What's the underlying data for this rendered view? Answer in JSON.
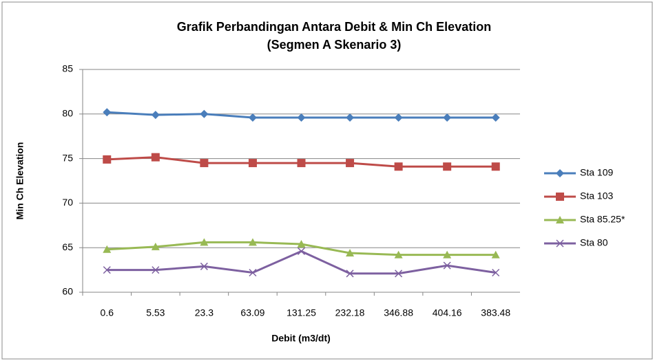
{
  "chart_data": {
    "type": "line",
    "title": "Grafik Perbandingan Antara Debit & Min Ch Elevation",
    "subtitle": "(Segmen A Skenario 3)",
    "x_label": "Debit (m3/dt)",
    "y_label": "Min Ch Elevation",
    "categories": [
      "0.6",
      "5.53",
      "23.3",
      "63.09",
      "131.25",
      "232.18",
      "346.88",
      "404.16",
      "383.48"
    ],
    "series": [
      {
        "name": "Sta 109",
        "color": "#4a7ebb",
        "marker": "diamond",
        "values": [
          80.2,
          79.9,
          80.0,
          79.6,
          79.6,
          79.6,
          79.6,
          79.6,
          79.6
        ]
      },
      {
        "name": "Sta 103",
        "color": "#be4b48",
        "marker": "square",
        "values": [
          74.9,
          75.15,
          74.5,
          74.5,
          74.5,
          74.5,
          74.1,
          74.1,
          74.1
        ]
      },
      {
        "name": "Sta 85.25*",
        "color": "#98b954",
        "marker": "triangle",
        "values": [
          64.8,
          65.1,
          65.6,
          65.6,
          65.4,
          64.4,
          64.2,
          64.2,
          64.2
        ]
      },
      {
        "name": "Sta 80",
        "color": "#7d60a0",
        "marker": "x",
        "values": [
          62.5,
          62.5,
          62.9,
          62.2,
          64.6,
          62.1,
          62.1,
          63.0,
          62.2
        ]
      }
    ],
    "ylim": [
      60,
      85
    ],
    "yticks": [
      60,
      65,
      70,
      75,
      80,
      85
    ],
    "grid": true,
    "legend": "right"
  }
}
